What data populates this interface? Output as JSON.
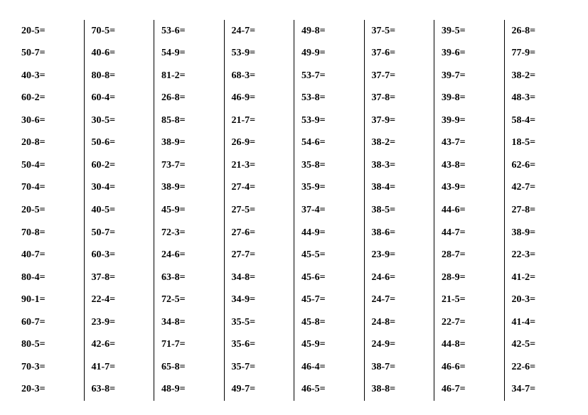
{
  "worksheet": {
    "type": "table",
    "font_family": "Times New Roman",
    "font_size_pt": 11,
    "font_weight": "bold",
    "text_color": "#000000",
    "background_color": "#ffffff",
    "separator_color": "#000000",
    "columns": [
      [
        "20-5=",
        "50-7=",
        "40-3=",
        "60-2=",
        "30-6=",
        "20-8=",
        "50-4=",
        "70-4=",
        "20-5=",
        "70-8=",
        "40-7=",
        "80-4=",
        "90-1=",
        "60-7=",
        "80-5=",
        "70-3=",
        "20-3="
      ],
      [
        "70-5=",
        "40-6=",
        "80-8=",
        "60-4=",
        "30-5=",
        "50-6=",
        "60-2=",
        "30-4=",
        "40-5=",
        "50-7=",
        "60-3=",
        "37-8=",
        "22-4=",
        "23-9=",
        "42-6=",
        "41-7=",
        "63-8="
      ],
      [
        "53-6=",
        "54-9=",
        "81-2=",
        "26-8=",
        "85-8=",
        "38-9=",
        "73-7=",
        "38-9=",
        "45-9=",
        "72-3=",
        "24-6=",
        "63-8=",
        "72-5=",
        "34-8=",
        "71-7=",
        "65-8=",
        "48-9="
      ],
      [
        "24-7=",
        "53-9=",
        "68-3=",
        "46-9=",
        "21-7=",
        "26-9=",
        "21-3=",
        "27-4=",
        "27-5=",
        "27-6=",
        "27-7=",
        "34-8=",
        "34-9=",
        "35-5=",
        "35-6=",
        "35-7=",
        "49-7="
      ],
      [
        "49-8=",
        "49-9=",
        "53-7=",
        "53-8=",
        "53-9=",
        "54-6=",
        "35-8=",
        "35-9=",
        "37-4=",
        "44-9=",
        "45-5=",
        "45-6=",
        "45-7=",
        "45-8=",
        "45-9=",
        "46-4=",
        "46-5="
      ],
      [
        "37-5=",
        "37-6=",
        "37-7=",
        "37-8=",
        "37-9=",
        "38-2=",
        "38-3=",
        "38-4=",
        "38-5=",
        "38-6=",
        "23-9=",
        "24-6=",
        "24-7=",
        "24-8=",
        "24-9=",
        "38-7=",
        "38-8="
      ],
      [
        "39-5=",
        "39-6=",
        "39-7=",
        "39-8=",
        "39-9=",
        "43-7=",
        "43-8=",
        "43-9=",
        "44-6=",
        "44-7=",
        "28-7=",
        "28-9=",
        "21-5=",
        "22-7=",
        "44-8=",
        "46-6=",
        "46-7="
      ],
      [
        "26-8=",
        "77-9=",
        "38-2=",
        "48-3=",
        "58-4=",
        "18-5=",
        "62-6=",
        "42-7=",
        "27-8=",
        "38-9=",
        "22-3=",
        "41-2=",
        "20-3=",
        "41-4=",
        "42-5=",
        "22-6=",
        "34-7="
      ]
    ]
  }
}
